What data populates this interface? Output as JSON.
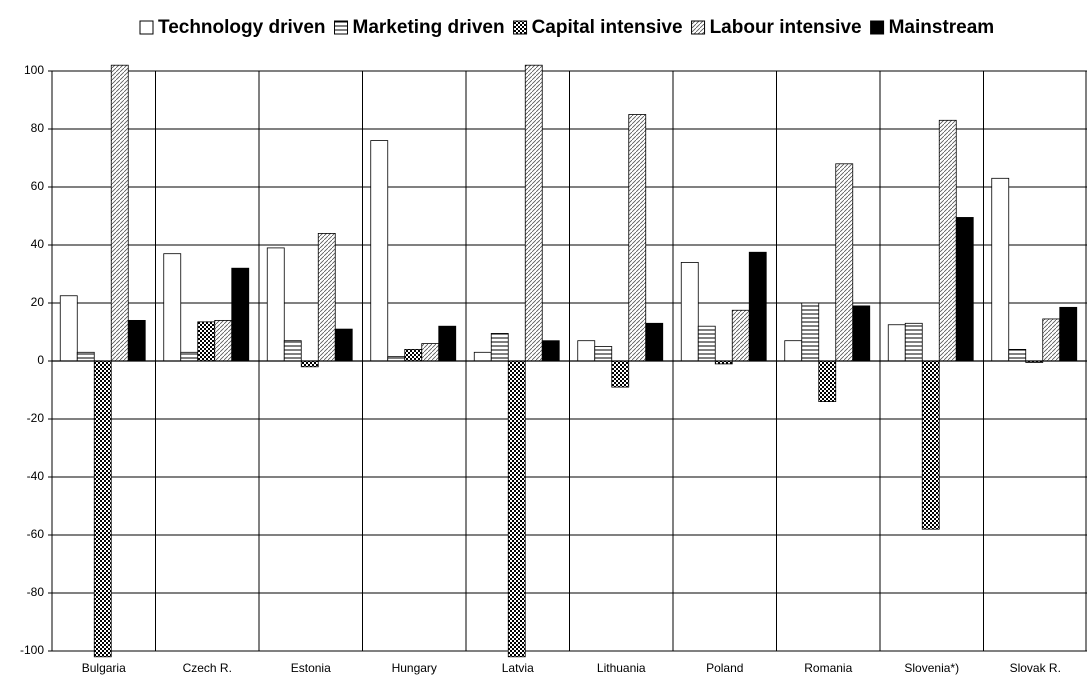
{
  "chart_data": {
    "type": "bar",
    "categories": [
      "Bulgaria",
      "Czech R.",
      "Estonia",
      "Hungary",
      "Latvia",
      "Lithuania",
      "Poland",
      "Romania",
      "Slovenia*)",
      "Slovak R."
    ],
    "series": [
      {
        "name": "Technology driven",
        "color": "#ffffff",
        "pattern": "none",
        "values": [
          22.5,
          37,
          39,
          76,
          3,
          7,
          34,
          7,
          12.5,
          63
        ]
      },
      {
        "name": "Marketing driven",
        "color": "#ffffff",
        "pattern": "horizontal",
        "values": [
          3,
          3,
          7,
          1.5,
          9.5,
          5,
          12,
          20,
          13,
          4
        ]
      },
      {
        "name": "Capital intensive",
        "color": "#ffffff",
        "pattern": "checker",
        "values": [
          -102,
          13.5,
          -2,
          4,
          -102,
          -9,
          -1,
          -14,
          -58,
          -0.5
        ]
      },
      {
        "name": "Labour intensive",
        "color": "#ffffff",
        "pattern": "diagonal",
        "values": [
          102,
          14,
          44,
          6,
          102,
          85,
          17.5,
          68,
          83,
          14.5
        ]
      },
      {
        "name": "Mainstream",
        "color": "#000000",
        "pattern": "none",
        "values": [
          14,
          32,
          11,
          12,
          7,
          13,
          37.5,
          19,
          49.5,
          18.5
        ]
      }
    ],
    "ylim": [
      -100,
      100
    ],
    "yticks": [
      -100,
      -80,
      -60,
      -40,
      -20,
      0,
      20,
      40,
      60,
      80,
      100
    ],
    "grid": true
  }
}
